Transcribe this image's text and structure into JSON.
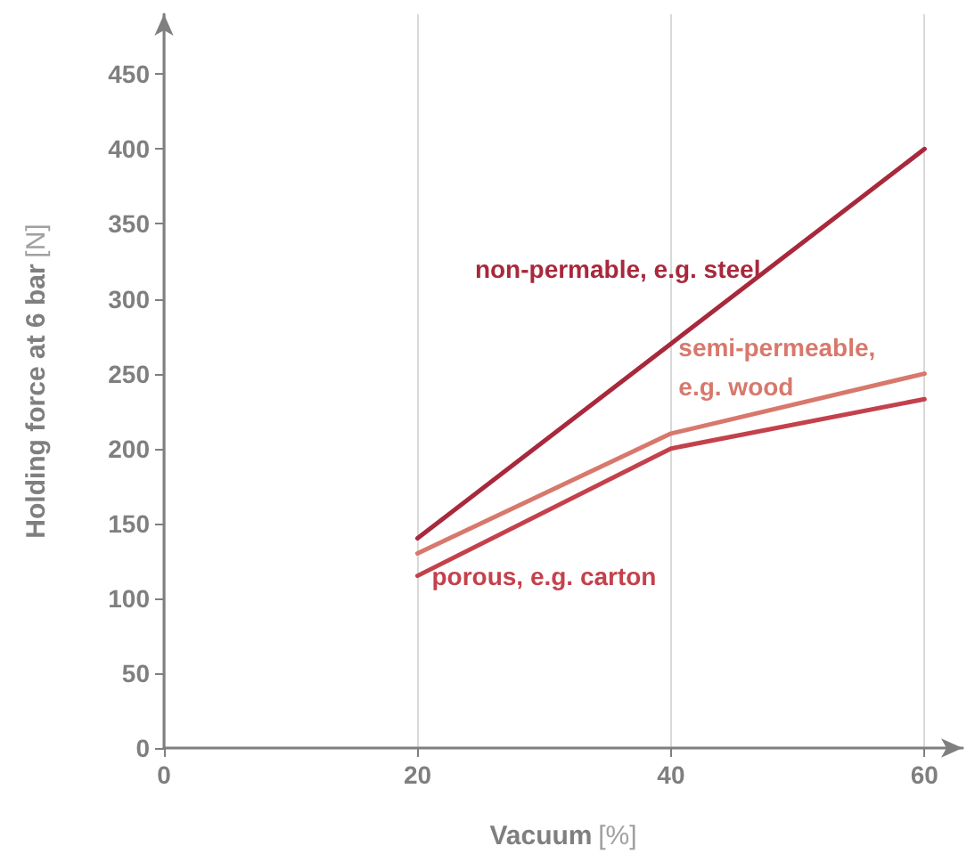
{
  "chart_data": {
    "type": "line",
    "xlabel": "Vacuum [%]",
    "ylabel": "Holding force at 6 bar [N]",
    "x": [
      20,
      40,
      60
    ],
    "series": [
      {
        "name": "non-permable, e.g. steel",
        "color": "#a8283c",
        "values": [
          140,
          270,
          400
        ]
      },
      {
        "name": "semi-permeable, e.g. wood",
        "color": "#d8786c",
        "values": [
          130,
          210,
          250
        ]
      },
      {
        "name": "porous, e.g. carton",
        "color": "#c4414c",
        "values": [
          115,
          200,
          233
        ]
      }
    ],
    "xlim": [
      0,
      63
    ],
    "xticks": [
      0,
      20,
      40,
      60
    ],
    "ylim": [
      0,
      490
    ],
    "yticks": [
      0,
      50,
      100,
      150,
      200,
      250,
      300,
      350,
      400,
      450
    ],
    "grid": "x",
    "legend": false,
    "marker": "none",
    "line_style": "solid"
  }
}
